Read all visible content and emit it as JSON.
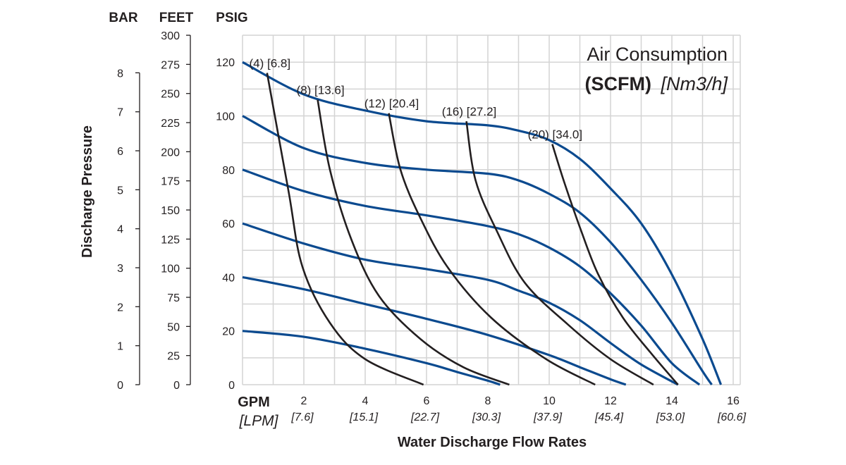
{
  "chart_data": {
    "type": "line",
    "title_line1": "Air Consumption",
    "title_line2_bold": "(SCFM)",
    "title_line2_italic": "[Nm3/h]",
    "xlabel": "Water Discharge Flow Rates",
    "x_unit_primary": "GPM",
    "x_unit_secondary": "[LPM]",
    "ylabel": "Discharge Pressure",
    "y_axes": [
      {
        "unit": "BAR",
        "ticks": [
          0,
          1,
          2,
          3,
          4,
          5,
          6,
          7,
          8
        ]
      },
      {
        "unit": "FEET",
        "ticks": [
          0,
          25,
          50,
          75,
          100,
          125,
          150,
          175,
          200,
          225,
          250,
          275,
          300
        ]
      },
      {
        "unit": "PSIG",
        "ticks": [
          0,
          20,
          40,
          60,
          80,
          100,
          120
        ]
      }
    ],
    "xlim": [
      0,
      16
    ],
    "ylim": [
      0,
      130
    ],
    "grid": true,
    "x_ticks": [
      {
        "gpm": "2",
        "lpm": "[7.6]"
      },
      {
        "gpm": "4",
        "lpm": "[15.1]"
      },
      {
        "gpm": "6",
        "lpm": "[22.7]"
      },
      {
        "gpm": "8",
        "lpm": "[30.3]"
      },
      {
        "gpm": "10",
        "lpm": "[37.9]"
      },
      {
        "gpm": "12",
        "lpm": "[45.4]"
      },
      {
        "gpm": "14",
        "lpm": "[53.0]"
      },
      {
        "gpm": "16",
        "lpm": "[60.6]"
      }
    ],
    "colors": {
      "pressure_curves": "#0b4a8f",
      "air_curves": "#231f20",
      "grid": "#d4d4d4"
    },
    "pressure_curves": [
      {
        "points": [
          [
            0,
            120
          ],
          [
            2,
            108
          ],
          [
            4,
            102
          ],
          [
            6,
            98
          ],
          [
            8,
            96.5
          ],
          [
            9,
            94.5
          ],
          [
            10,
            91
          ],
          [
            11,
            84
          ],
          [
            12,
            73
          ],
          [
            13,
            60
          ],
          [
            14,
            41
          ],
          [
            15,
            17
          ],
          [
            15.6,
            0
          ]
        ]
      },
      {
        "points": [
          [
            0,
            100
          ],
          [
            2,
            88
          ],
          [
            4,
            82.5
          ],
          [
            6,
            80
          ],
          [
            8,
            78.5
          ],
          [
            9,
            76
          ],
          [
            10,
            71
          ],
          [
            11,
            64
          ],
          [
            12,
            53
          ],
          [
            13,
            39
          ],
          [
            14,
            23
          ],
          [
            15,
            5
          ],
          [
            15.3,
            0
          ]
        ]
      },
      {
        "points": [
          [
            0,
            80
          ],
          [
            2,
            72
          ],
          [
            4,
            66.5
          ],
          [
            6,
            63
          ],
          [
            8,
            59
          ],
          [
            9,
            56
          ],
          [
            10,
            51
          ],
          [
            11,
            44
          ],
          [
            12,
            34
          ],
          [
            13,
            22
          ],
          [
            14,
            8
          ],
          [
            14.9,
            0
          ]
        ]
      },
      {
        "points": [
          [
            0,
            60
          ],
          [
            2,
            52.5
          ],
          [
            4,
            46.5
          ],
          [
            6,
            43
          ],
          [
            8,
            39
          ],
          [
            9,
            35
          ],
          [
            10,
            30.5
          ],
          [
            11,
            24
          ],
          [
            12,
            15.5
          ],
          [
            13,
            7.5
          ],
          [
            14.2,
            0
          ]
        ]
      },
      {
        "points": [
          [
            0,
            40
          ],
          [
            2,
            35.5
          ],
          [
            4,
            30
          ],
          [
            6,
            24.5
          ],
          [
            8,
            18.5
          ],
          [
            10,
            11
          ],
          [
            11,
            6.5
          ],
          [
            12,
            2
          ],
          [
            12.5,
            0
          ]
        ]
      },
      {
        "points": [
          [
            0,
            20
          ],
          [
            2,
            17.8
          ],
          [
            4,
            13.4
          ],
          [
            6,
            8
          ],
          [
            7,
            4.7
          ],
          [
            8,
            1.5
          ],
          [
            8.4,
            0
          ]
        ]
      }
    ],
    "air_curves": [
      {
        "label": "(4) [6.8]",
        "points": [
          [
            0.8,
            116
          ],
          [
            1.5,
            72
          ],
          [
            1.95,
            44
          ],
          [
            2.85,
            23
          ],
          [
            4,
            9.5
          ],
          [
            5.9,
            0
          ]
        ]
      },
      {
        "label": "(8) [13.6]",
        "points": [
          [
            2.45,
            106
          ],
          [
            2.85,
            80
          ],
          [
            3.55,
            54
          ],
          [
            4.45,
            33
          ],
          [
            5.8,
            17
          ],
          [
            7.2,
            6.5
          ],
          [
            8.7,
            0
          ]
        ]
      },
      {
        "label": "(12) [20.4]",
        "points": [
          [
            4.77,
            101
          ],
          [
            5.15,
            80
          ],
          [
            5.8,
            62
          ],
          [
            6.7,
            43.5
          ],
          [
            8.1,
            25
          ],
          [
            9.9,
            9.5
          ],
          [
            11.5,
            0
          ]
        ]
      },
      {
        "label": "(16) [27.2]",
        "points": [
          [
            7.3,
            98
          ],
          [
            7.6,
            76
          ],
          [
            8.3,
            57
          ],
          [
            9.2,
            38
          ],
          [
            10.6,
            22.5
          ],
          [
            12,
            9.5
          ],
          [
            13.4,
            0
          ]
        ]
      },
      {
        "label": "(20) [34.0]",
        "points": [
          [
            10.1,
            89.5
          ],
          [
            10.5,
            75
          ],
          [
            11.05,
            57
          ],
          [
            11.6,
            41
          ],
          [
            12.4,
            25
          ],
          [
            13.3,
            12
          ],
          [
            14.2,
            0
          ]
        ]
      }
    ]
  }
}
